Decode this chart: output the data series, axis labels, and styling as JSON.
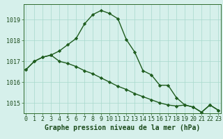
{
  "line1": [
    1016.6,
    1017.0,
    1017.2,
    1017.3,
    1017.5,
    1017.8,
    1018.1,
    1018.8,
    1019.25,
    1019.45,
    1019.3,
    1019.05,
    1018.05,
    1017.45,
    1016.55,
    1016.35,
    1015.85,
    1015.85,
    1015.25,
    1014.9,
    1014.8,
    1014.55,
    1014.9,
    1014.65
  ],
  "line2": [
    1016.6,
    1017.0,
    1017.2,
    1017.3,
    1017.0,
    1016.9,
    1016.75,
    1016.55,
    1016.4,
    1016.2,
    1016.0,
    1015.8,
    1015.65,
    1015.45,
    1015.3,
    1015.15,
    1015.0,
    1014.9,
    1014.85,
    1014.9,
    1014.8,
    1014.55,
    1014.9,
    1014.65
  ],
  "x": [
    0,
    1,
    2,
    3,
    4,
    5,
    6,
    7,
    8,
    9,
    10,
    11,
    12,
    13,
    14,
    15,
    16,
    17,
    18,
    19,
    20,
    21,
    22,
    23
  ],
  "ylim": [
    1014.5,
    1019.75
  ],
  "yticks": [
    1015,
    1016,
    1017,
    1018,
    1019
  ],
  "xlabel": "Graphe pression niveau de la mer (hPa)",
  "line_color": "#1e5c1e",
  "bg_color": "#d6f0eb",
  "grid_color": "#a8d8cc",
  "marker": "D",
  "marker_size": 2.2,
  "line_width": 1.0,
  "xlabel_fontsize": 7,
  "tick_fontsize": 6
}
